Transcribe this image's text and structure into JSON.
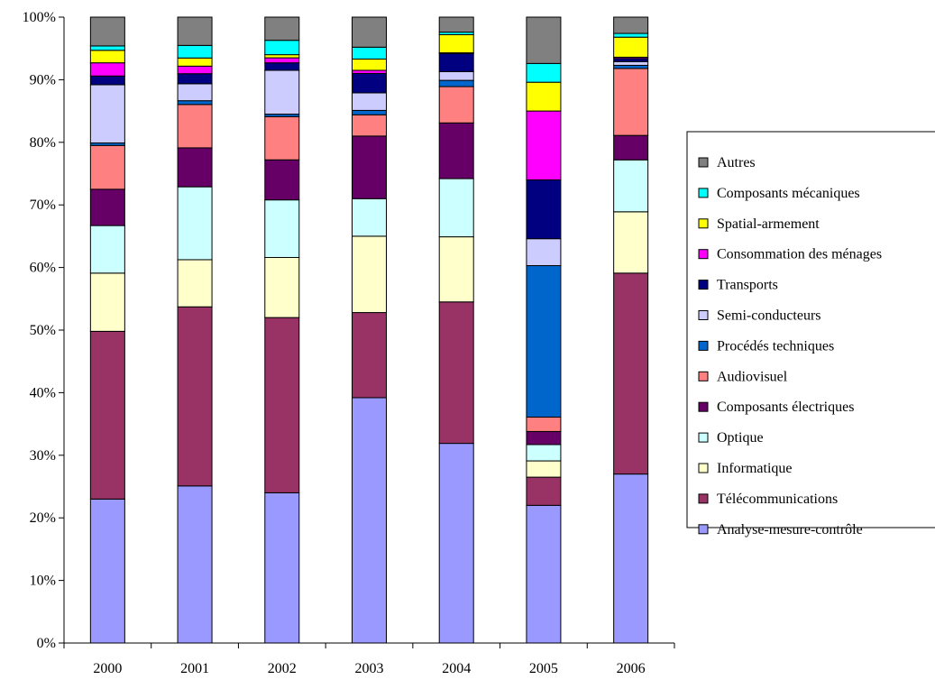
{
  "chart_data": {
    "type": "bar",
    "stacked": true,
    "percent_stacked": true,
    "title": "",
    "xlabel": "",
    "ylabel": "",
    "ylim": [
      0,
      100
    ],
    "y_ticks": [
      "0%",
      "10%",
      "20%",
      "30%",
      "40%",
      "50%",
      "60%",
      "70%",
      "80%",
      "90%",
      "100%"
    ],
    "categories": [
      "2000",
      "2001",
      "2002",
      "2003",
      "2004",
      "2005",
      "2006"
    ],
    "grid": false,
    "legend_position": "right",
    "series": [
      {
        "name": "Analyse-mesure-contrôle",
        "color": "#9999FF",
        "values": [
          23,
          25,
          24,
          39.2,
          31.9,
          22,
          27
        ]
      },
      {
        "name": "Télécommunications",
        "color": "#993366",
        "values": [
          26.8,
          28.5,
          28,
          13.6,
          22.6,
          4.5,
          32.1
        ]
      },
      {
        "name": "Informatique",
        "color": "#FFFFCC",
        "values": [
          9.3,
          7.5,
          9.6,
          12.2,
          10.4,
          2.6,
          9.8
        ]
      },
      {
        "name": "Optique",
        "color": "#CCFFFF",
        "values": [
          7.6,
          11.6,
          9.2,
          6,
          9.3,
          2.6,
          8.3
        ]
      },
      {
        "name": "Composants électriques",
        "color": "#660066",
        "values": [
          5.8,
          6.2,
          6.4,
          10,
          8.9,
          2.1,
          3.9
        ]
      },
      {
        "name": "Audiovisuel",
        "color": "#FF8080",
        "values": [
          7,
          6.9,
          6.9,
          3.4,
          5.8,
          2.3,
          10.7
        ]
      },
      {
        "name": "Procédés techniques",
        "color": "#0066CC",
        "values": [
          0.4,
          0.6,
          0.4,
          0.7,
          1,
          24.2,
          0.5
        ]
      },
      {
        "name": "Semi-conducteurs",
        "color": "#CCCCFF",
        "values": [
          9.3,
          2.7,
          7,
          2.8,
          1.4,
          4.3,
          0.6
        ]
      },
      {
        "name": "Transports",
        "color": "#000080",
        "values": [
          1.4,
          1.6,
          1.2,
          3.1,
          2.9,
          9.4,
          0.5
        ]
      },
      {
        "name": "Consommation des ménages",
        "color": "#FF00FF",
        "values": [
          2.1,
          1.2,
          0.8,
          0.5,
          0.1,
          11,
          0.2
        ]
      },
      {
        "name": "Spatial-armement",
        "color": "#FFFF00",
        "values": [
          2,
          1.3,
          0.5,
          1.8,
          2.9,
          4.6,
          3.2
        ]
      },
      {
        "name": "Composants mécaniques",
        "color": "#00FFFF",
        "values": [
          0.7,
          2,
          2.3,
          1.9,
          0.4,
          3,
          0.6
        ]
      },
      {
        "name": "Autres",
        "color": "#808080",
        "values": [
          4.6,
          4.5,
          3.7,
          4.8,
          2.4,
          7.4,
          2.6
        ]
      }
    ]
  }
}
